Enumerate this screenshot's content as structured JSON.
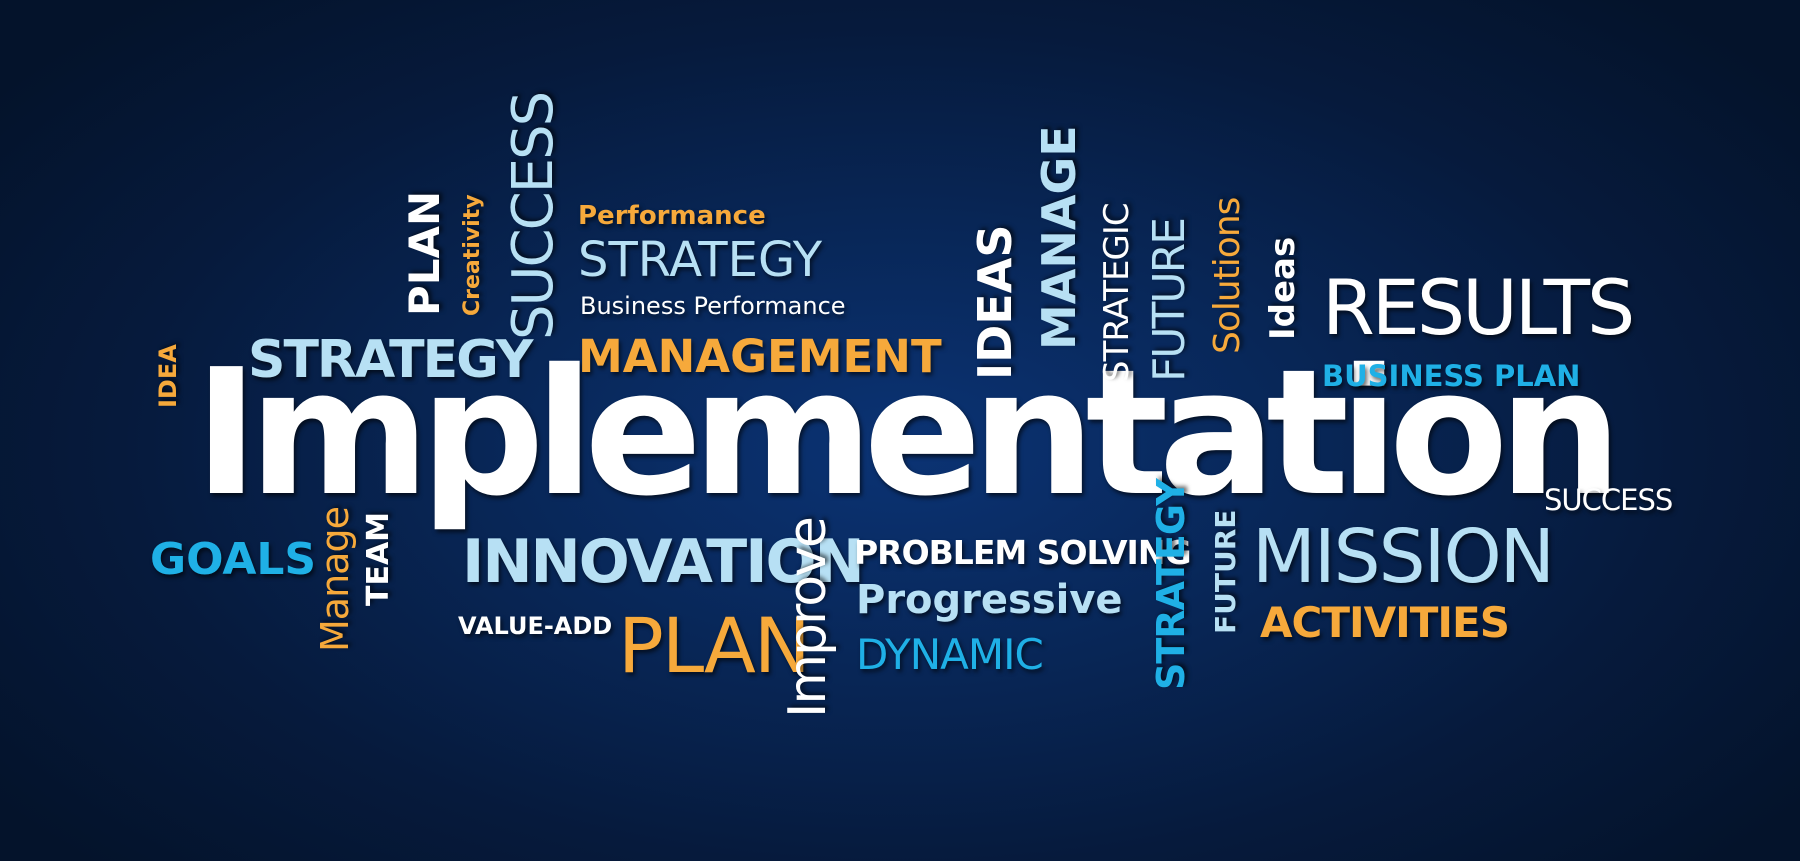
{
  "background": {
    "inner": "#0b3374",
    "outer": "#04132b"
  },
  "colors": {
    "white": "#ffffff",
    "orange": "#f6a93b",
    "lightblue": "#b7e0f4",
    "cyan": "#1fb0e6"
  },
  "words": {
    "implementation": "Implementation",
    "performance": "Performance",
    "strategy_top": "STRATEGY",
    "business_performance": "Business Performance",
    "management": "MANAGEMENT",
    "strategy_left": "STRATEGY",
    "idea": "IDEA",
    "plan_vertical": "PLAN",
    "creativity": "Creativity",
    "success_vertical": "SUCCESS",
    "ideas_vertical": "IDEAS",
    "manage_vertical": "MANAGE",
    "strategic": "STRATEGIC",
    "future_top": "FUTURE",
    "solutions": "Solutions",
    "ideas_lower": "Ideas",
    "results": "RESULTS",
    "business_plan": "BUSINESS PLAN",
    "success_right": "SUCCESS",
    "goals": "GOALS",
    "manage_lower": "Manage",
    "team": "TEAM",
    "innovation": "INNOVATION",
    "value_add": "VALUE-ADD",
    "plan_bottom": "PLAN",
    "improve": "Improve",
    "problem_solving": "PROBLEM SOLVING",
    "progressive": "Progressive",
    "dynamic": "DYNAMIC",
    "strategy_vertical": "STRATEGY",
    "future_bottom": "FUTURE",
    "mission": "MISSION",
    "activities": "ACTIVITIES"
  }
}
